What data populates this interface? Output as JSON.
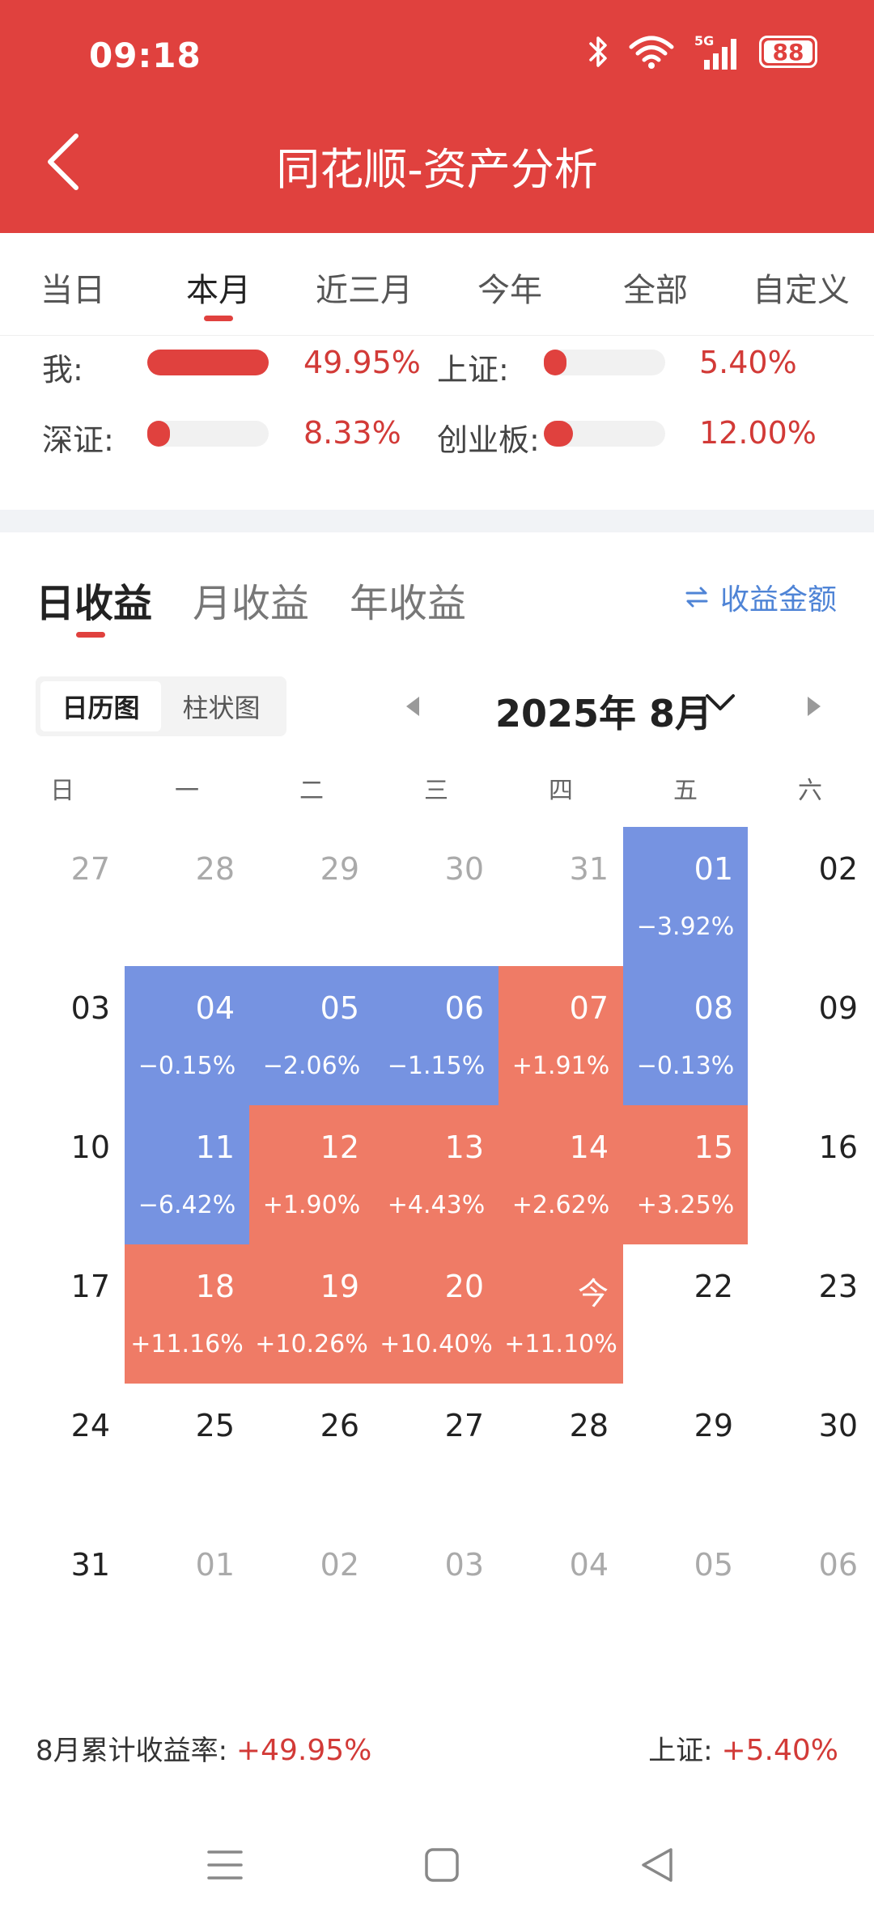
{
  "status_bar": {
    "time": "09:18",
    "battery": "88",
    "network": "5G"
  },
  "header": {
    "title": "同花顺-资产分析"
  },
  "period_tabs": [
    "当日",
    "本月",
    "近三月",
    "今年",
    "全部",
    "自定义"
  ],
  "period_active": "本月",
  "comparison": [
    {
      "label": "我:",
      "value": "49.95%",
      "fraction": 1.0
    },
    {
      "label": "上证:",
      "value": "5.40%",
      "fraction": 0.11
    },
    {
      "label": "深证:",
      "value": "8.33%",
      "fraction": 0.17
    },
    {
      "label": "创业板:",
      "value": "12.00%",
      "fraction": 0.24
    }
  ],
  "return_tabs": [
    "日收益",
    "月收益",
    "年收益"
  ],
  "return_active": "日收益",
  "amount_toggle": "收益金额",
  "view_toggle": [
    "日历图",
    "柱状图"
  ],
  "view_active": "日历图",
  "month_label": "2025年 8月",
  "weekdays": [
    "日",
    "一",
    "二",
    "三",
    "四",
    "五",
    "六"
  ],
  "calendar_weeks": [
    [
      {
        "day": "27",
        "other": true
      },
      {
        "day": "28",
        "other": true
      },
      {
        "day": "29",
        "other": true
      },
      {
        "day": "30",
        "other": true
      },
      {
        "day": "31",
        "other": true
      },
      {
        "day": "01",
        "ret": "−3.92%",
        "state": "neg"
      },
      {
        "day": "02"
      }
    ],
    [
      {
        "day": "03"
      },
      {
        "day": "04",
        "ret": "−0.15%",
        "state": "neg"
      },
      {
        "day": "05",
        "ret": "−2.06%",
        "state": "neg"
      },
      {
        "day": "06",
        "ret": "−1.15%",
        "state": "neg"
      },
      {
        "day": "07",
        "ret": "+1.91%",
        "state": "pos"
      },
      {
        "day": "08",
        "ret": "−0.13%",
        "state": "neg"
      },
      {
        "day": "09"
      }
    ],
    [
      {
        "day": "10"
      },
      {
        "day": "11",
        "ret": "−6.42%",
        "state": "neg"
      },
      {
        "day": "12",
        "ret": "+1.90%",
        "state": "pos"
      },
      {
        "day": "13",
        "ret": "+4.43%",
        "state": "pos"
      },
      {
        "day": "14",
        "ret": "+2.62%",
        "state": "pos"
      },
      {
        "day": "15",
        "ret": "+3.25%",
        "state": "pos"
      },
      {
        "day": "16"
      }
    ],
    [
      {
        "day": "17"
      },
      {
        "day": "18",
        "ret": "+11.16%",
        "state": "pos"
      },
      {
        "day": "19",
        "ret": "+10.26%",
        "state": "pos"
      },
      {
        "day": "20",
        "ret": "+10.40%",
        "state": "pos"
      },
      {
        "day": "今",
        "ret": "+11.10%",
        "state": "pos"
      },
      {
        "day": "22"
      },
      {
        "day": "23"
      }
    ],
    [
      {
        "day": "24"
      },
      {
        "day": "25"
      },
      {
        "day": "26"
      },
      {
        "day": "27"
      },
      {
        "day": "28"
      },
      {
        "day": "29"
      },
      {
        "day": "30"
      }
    ],
    [
      {
        "day": "31"
      },
      {
        "day": "01",
        "other": true
      },
      {
        "day": "02",
        "other": true
      },
      {
        "day": "03",
        "other": true
      },
      {
        "day": "04",
        "other": true
      },
      {
        "day": "05",
        "other": true
      },
      {
        "day": "06",
        "other": true
      }
    ]
  ],
  "summary": {
    "month_label": "8月累计收益率:",
    "month_value": "+49.95%",
    "index_label": "上证:",
    "index_value": "+5.40%"
  },
  "colors": {
    "header": "#e0413e",
    "positive": "#ef7b66",
    "negative": "#7693e1",
    "accent_blue": "#4f84d6"
  }
}
